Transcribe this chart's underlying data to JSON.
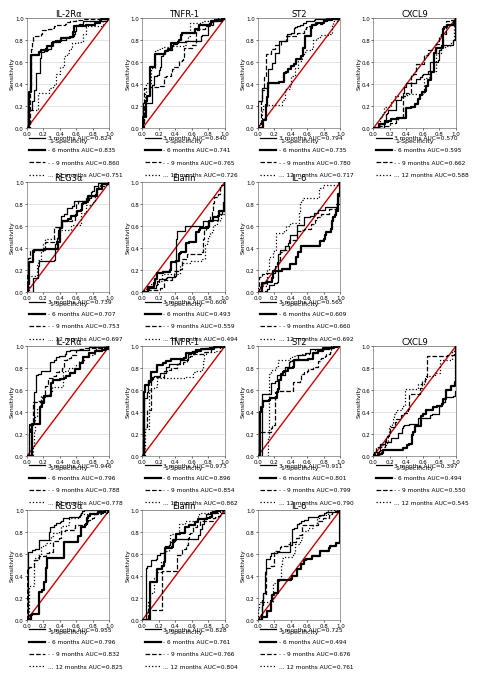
{
  "rows": [
    {
      "row_label": "row1",
      "plots": [
        {
          "title": "IL-2Rα",
          "legends": [
            {
              "label": "3 months AUC=0.824"
            },
            {
              "label": "- 6 months AUC=0.835"
            },
            {
              "label": "- - 9 months AUC=0.860"
            },
            {
              "label": "... 12 months AUC=0.751"
            }
          ]
        },
        {
          "title": "TNFR-1",
          "legends": [
            {
              "label": "3 months AUC=0.840"
            },
            {
              "label": "- 6 months AUC=0.741"
            },
            {
              "label": "- - 9 months AUC=0.765"
            },
            {
              "label": "... 12 months AUC=0.726"
            }
          ]
        },
        {
          "title": "ST2",
          "legends": [
            {
              "label": "3 months AUC=0.794"
            },
            {
              "label": "- 6 months AUC=0.735"
            },
            {
              "label": "- - 9 months AUC=0.780"
            },
            {
              "label": "... 12 months AUC=0.717"
            }
          ]
        },
        {
          "title": "CXCL9",
          "legends": [
            {
              "label": "3 months AUC=0.570"
            },
            {
              "label": "- 6 months AUC=0.595"
            },
            {
              "label": "- - 9 months AUC=0.662"
            },
            {
              "label": "... 12 months AUC=0.588"
            }
          ]
        }
      ]
    },
    {
      "row_label": "row2",
      "plots": [
        {
          "title": "REG3α",
          "legends": [
            {
              "label": "3 months AUC=0.739"
            },
            {
              "label": "- 6 months AUC=0.707"
            },
            {
              "label": "- - 9 months AUC=0.753"
            },
            {
              "label": "... 12 months AUC=0.697"
            }
          ]
        },
        {
          "title": "Elafin",
          "legends": [
            {
              "label": "3 months AUC=0.606"
            },
            {
              "label": "- 6 months AUC=0.493"
            },
            {
              "label": "- - 9 months AUC=0.559"
            },
            {
              "label": "... 12 months AUC=0.494"
            }
          ]
        },
        {
          "title": "IL-6",
          "legends": [
            {
              "label": "3 months AUC=0.565"
            },
            {
              "label": "- 6 months AUC=0.609"
            },
            {
              "label": "- - 9 months AUC=0.660"
            },
            {
              "label": "... 12 months AUC=0.692"
            }
          ]
        }
      ]
    },
    {
      "row_label": "row3",
      "plots": [
        {
          "title": "IL-2Rα",
          "legends": [
            {
              "label": "3 months AUC=0.946"
            },
            {
              "label": "- 6 months AUC=0.796"
            },
            {
              "label": "- - 9 months AUC=0.788"
            },
            {
              "label": "... 12 months AUC=0.778"
            }
          ]
        },
        {
          "title": "TNFR-1",
          "legends": [
            {
              "label": "3 months AUC=0.973"
            },
            {
              "label": "- 6 months AUC=0.896"
            },
            {
              "label": "- - 9 months AUC=0.854"
            },
            {
              "label": "... 12 months AUC=0.862"
            }
          ]
        },
        {
          "title": "ST2",
          "legends": [
            {
              "label": "3 months AUC=0.911"
            },
            {
              "label": "- 6 months AUC=0.801"
            },
            {
              "label": "- - 9 months AUC=0.799"
            },
            {
              "label": "... 12 months AUC=0.790"
            }
          ]
        },
        {
          "title": "CXCL9",
          "legends": [
            {
              "label": "3 months AUC=0.397"
            },
            {
              "label": "- 6 months AUC=0.494"
            },
            {
              "label": "- - 9 months AUC=0.550"
            },
            {
              "label": "... 12 months AUC=0.545"
            }
          ]
        }
      ]
    },
    {
      "row_label": "row4",
      "plots": [
        {
          "title": "REG3α",
          "legends": [
            {
              "label": "3 months AUC=0.955"
            },
            {
              "label": "- 6 months AUC=0.796"
            },
            {
              "label": "- - 9 months AUC=0.832"
            },
            {
              "label": "... 12 months AUC=0.825"
            }
          ]
        },
        {
          "title": "Elafin",
          "legends": [
            {
              "label": "3 months AUC=0.828"
            },
            {
              "label": "- 6 months AUC=0.761"
            },
            {
              "label": "- - 9 months AUC=0.766"
            },
            {
              "label": "... 12 months AUC=0.804"
            }
          ]
        },
        {
          "title": "IL-6",
          "legends": [
            {
              "label": "3 months AUC=0.725"
            },
            {
              "label": "- 6 months AUC=0.494"
            },
            {
              "label": "- - 9 months AUC=0.676"
            },
            {
              "label": "... 12 months AUC=0.761"
            }
          ]
        }
      ]
    }
  ],
  "row_ncols": [
    4,
    3,
    4,
    3
  ],
  "diag_color": "#cc0000",
  "curve_color": "#000000",
  "bg_color": "#ffffff",
  "grid_color": "#d0d0d0",
  "xlabel": "1-Specificity",
  "ylabel": "Sensitivity",
  "tick_labels": [
    "0.0",
    "0.2",
    "0.4",
    "0.6",
    "0.8",
    "1.0"
  ],
  "tick_values": [
    0.0,
    0.2,
    0.4,
    0.6,
    0.8,
    1.0
  ],
  "legend_fontsize": 4.2,
  "title_fontsize": 6.0,
  "axis_label_fontsize": 4.5,
  "tick_fontsize": 4.0
}
